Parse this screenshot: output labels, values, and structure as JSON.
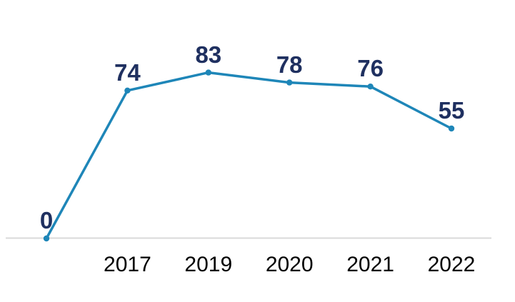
{
  "chart_data": {
    "type": "line",
    "categories": [
      "",
      "2017",
      "2019",
      "2020",
      "2021",
      "2022"
    ],
    "values": [
      0,
      74,
      83,
      78,
      76,
      55
    ],
    "show_data_labels": true,
    "title": "",
    "xlabel": "",
    "ylabel": "",
    "ylim": [
      0,
      95
    ],
    "grid": false,
    "legend": "none",
    "colors": {
      "line": "#1E86B8",
      "marker": "#1E86B8",
      "data_label": "#1F3060",
      "tick_label": "#000000",
      "axis_line": "#D9D9D9",
      "background": "#FFFFFF"
    }
  }
}
